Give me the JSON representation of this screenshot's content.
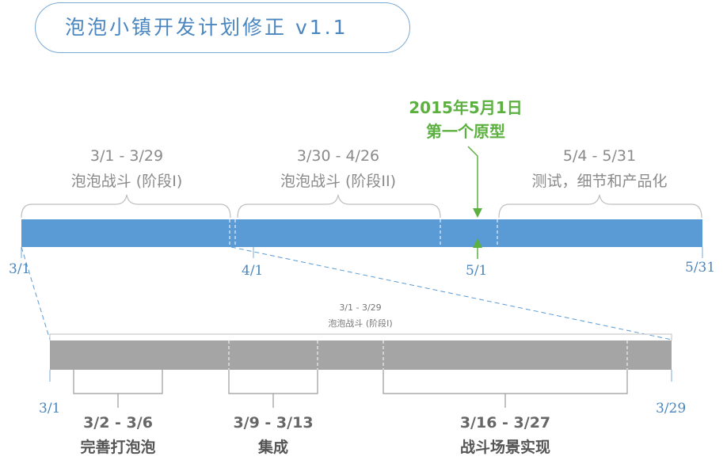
{
  "title": "泡泡小镇开发计划修正 v1.1",
  "milestone": {
    "line1": "2015年5月1日",
    "line2": "第一个原型"
  },
  "main_timeline": {
    "phases": [
      {
        "range": "3/1 - 3/29",
        "name": "泡泡战斗 (阶段I)"
      },
      {
        "range": "3/30 - 4/26",
        "name": "泡泡战斗 (阶段II)"
      },
      {
        "range": "5/4 - 5/31",
        "name": "测试，细节和产品化"
      }
    ],
    "ticks": [
      "3/1",
      "4/1",
      "5/1",
      "5/31"
    ]
  },
  "detail_timeline": {
    "caption_range": "3/1 - 3/29",
    "caption_name": "泡泡战斗 (阶段I)",
    "ticks": [
      "3/1",
      "3/29"
    ],
    "tasks": [
      {
        "range": "3/2 - 3/6",
        "name": "完善打泡泡"
      },
      {
        "range": "3/9 - 3/13",
        "name": "集成"
      },
      {
        "range": "3/16 - 3/27",
        "name": "战斗场景实现"
      }
    ]
  },
  "colors": {
    "main_bar": "#5b9bd5",
    "detail_bar": "#a5a5a5",
    "milestone": "#5cb040",
    "accent": "#4a86bf"
  }
}
